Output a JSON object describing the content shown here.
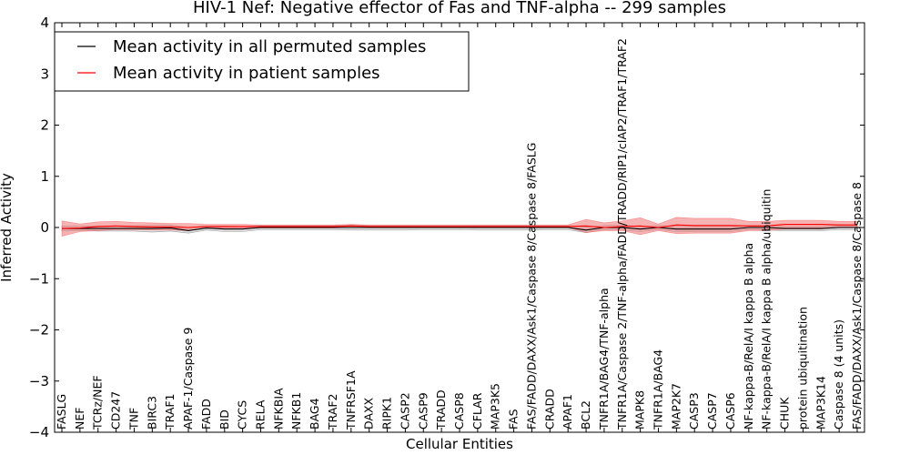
{
  "chart_data": {
    "type": "line",
    "title": "HIV-1 Nef: Negative effector of Fas and TNF-alpha -- 299 samples",
    "xlabel": "Cellular Entities",
    "ylabel": "Inferred Activity",
    "ylim": [
      -4,
      4
    ],
    "yticks": [
      -4,
      -3,
      -2,
      -1,
      0,
      1,
      2,
      3,
      4
    ],
    "ytick_labels": [
      "−4",
      "−3",
      "−2",
      "−1",
      "0",
      "1",
      "2",
      "3",
      "4"
    ],
    "legend_position": "upper-left",
    "categories": [
      "FASLG",
      "NEF",
      "TCRz/NEF",
      "CD247",
      "TNF",
      "BIRC3",
      "TRAF1",
      "APAF-1/Caspase 9",
      "FADD",
      "BID",
      "CYCS",
      "RELA",
      "NFKBIA",
      "NFKB1",
      "BAG4",
      "TRAF2",
      "TNFRSF1A",
      "DAXX",
      "RIPK1",
      "CASP2",
      "CASP9",
      "TRADD",
      "CASP8",
      "CFLAR",
      "MAP3K5",
      "FAS",
      "FAS/FADD/DAXX/Ask1/Caspase 8/Caspase 8/FASLG",
      "CRADD",
      "APAF1",
      "BCL2",
      "TNFR1A/BAG4/TNF-alpha",
      "TNFR1A/Caspase 2/TNF-alpha/FADD/TRADD/RIP1/cIAP2/TRAF1/TRAF2",
      "MAPK8",
      "TNFR1A/BAG4",
      "MAP2K7",
      "CASP3",
      "CASP7",
      "CASP6",
      "NF-kappa-B/RelA/I kappa B alpha",
      "NF-kappa-B/RelA/I kappa B alpha/ubiquitin",
      "CHUK",
      "protein ubiquitination",
      "MAP3K14",
      "Caspase 8 (4 units)",
      "FAS/FADD/DAXX/Ask1/Caspase 8/Caspase 8"
    ],
    "series": [
      {
        "name": "Mean activity in all permuted samples",
        "color": "#000000",
        "fill": "#c8c8c8",
        "values": [
          -0.02,
          -0.02,
          -0.02,
          -0.02,
          -0.02,
          -0.02,
          -0.01,
          -0.06,
          -0.01,
          -0.03,
          -0.03,
          0.0,
          0.0,
          0.0,
          0.0,
          0.0,
          0.0,
          0.0,
          0.0,
          0.0,
          0.0,
          0.0,
          0.0,
          0.0,
          0.0,
          0.0,
          0.0,
          0.0,
          0.0,
          -0.05,
          0.0,
          0.0,
          -0.03,
          0.0,
          -0.03,
          -0.03,
          -0.03,
          -0.03,
          0.0,
          0.0,
          -0.02,
          -0.02,
          -0.02,
          0.0,
          0.0
        ],
        "lower": [
          -0.07,
          -0.06,
          -0.07,
          -0.07,
          -0.07,
          -0.09,
          -0.07,
          -0.11,
          -0.05,
          -0.08,
          -0.08,
          -0.04,
          -0.04,
          -0.04,
          -0.04,
          -0.04,
          -0.05,
          -0.05,
          -0.05,
          -0.05,
          -0.04,
          -0.04,
          -0.04,
          -0.05,
          -0.05,
          -0.05,
          -0.05,
          -0.04,
          -0.04,
          -0.1,
          -0.04,
          -0.05,
          -0.08,
          -0.04,
          -0.08,
          -0.08,
          -0.08,
          -0.08,
          -0.04,
          -0.05,
          -0.06,
          -0.06,
          -0.06,
          -0.04,
          -0.04
        ],
        "upper": [
          0.03,
          0.03,
          0.03,
          0.03,
          0.03,
          0.04,
          0.05,
          0.0,
          0.03,
          0.03,
          0.02,
          0.04,
          0.04,
          0.04,
          0.04,
          0.04,
          0.05,
          0.04,
          0.04,
          0.04,
          0.04,
          0.04,
          0.04,
          0.04,
          0.04,
          0.04,
          0.04,
          0.04,
          0.04,
          0.01,
          0.04,
          0.05,
          0.02,
          0.04,
          0.02,
          0.02,
          0.02,
          0.02,
          0.04,
          0.04,
          0.02,
          0.02,
          0.02,
          0.04,
          0.04
        ]
      },
      {
        "name": "Mean activity in patient samples",
        "color": "#ff0000",
        "fill": "#f08080",
        "values": [
          -0.02,
          -0.01,
          0.02,
          0.03,
          0.02,
          0.01,
          0.01,
          0.0,
          0.02,
          0.02,
          0.02,
          0.02,
          0.02,
          0.02,
          0.02,
          0.02,
          0.03,
          0.02,
          0.02,
          0.02,
          0.02,
          0.02,
          0.02,
          0.02,
          0.02,
          0.02,
          0.02,
          0.02,
          0.02,
          0.03,
          0.0,
          0.02,
          0.03,
          0.0,
          0.05,
          0.04,
          0.04,
          0.04,
          0.03,
          0.03,
          0.06,
          0.06,
          0.06,
          0.05,
          0.05
        ],
        "lower": [
          -0.17,
          -0.08,
          -0.06,
          -0.04,
          -0.04,
          -0.05,
          -0.05,
          -0.06,
          -0.01,
          -0.01,
          -0.01,
          -0.01,
          -0.01,
          -0.01,
          -0.01,
          -0.01,
          0.0,
          0.0,
          0.0,
          0.0,
          0.0,
          0.0,
          0.0,
          0.0,
          0.0,
          0.0,
          0.0,
          0.0,
          0.0,
          -0.1,
          -0.06,
          -0.06,
          -0.14,
          -0.06,
          -0.12,
          -0.11,
          -0.11,
          -0.11,
          -0.06,
          -0.06,
          -0.03,
          -0.03,
          -0.03,
          0.01,
          0.01
        ],
        "upper": [
          0.13,
          0.07,
          0.11,
          0.12,
          0.1,
          0.09,
          0.08,
          0.08,
          0.06,
          0.06,
          0.06,
          0.05,
          0.05,
          0.05,
          0.05,
          0.05,
          0.06,
          0.05,
          0.05,
          0.05,
          0.05,
          0.05,
          0.05,
          0.05,
          0.05,
          0.05,
          0.05,
          0.05,
          0.05,
          0.16,
          0.09,
          0.13,
          0.19,
          0.07,
          0.2,
          0.18,
          0.18,
          0.18,
          0.12,
          0.12,
          0.14,
          0.14,
          0.14,
          0.12,
          0.12
        ]
      }
    ]
  }
}
